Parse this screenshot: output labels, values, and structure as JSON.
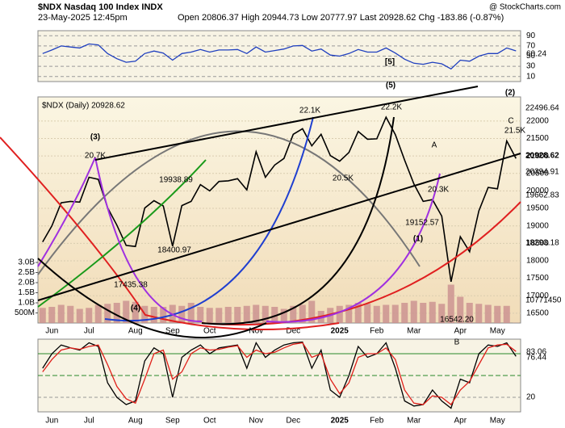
{
  "header": {
    "title": "$NDX Nasdaq 100 Index INDX",
    "date": "23-May-2025 12:45pm",
    "ohlc": "Open 20806.37 High 20944.73 Low 20777.97 Last 20928.62 Chg -183.86 (-0.87%)",
    "brand": "@ StockCharts.com"
  },
  "chart_data": [
    {
      "type": "line",
      "color": "#1f3fbf",
      "values": [
        55,
        62,
        70,
        68,
        66,
        74,
        72,
        55,
        45,
        38,
        40,
        55,
        60,
        56,
        42,
        55,
        58,
        63,
        58,
        62,
        62,
        63,
        55,
        68,
        58,
        61,
        64,
        70,
        71,
        60,
        64,
        52,
        50,
        55,
        63,
        58,
        58,
        66,
        56,
        44,
        36,
        34,
        38,
        35,
        25,
        42,
        40,
        50,
        55,
        55,
        66,
        60.24
      ],
      "ylim": [
        0,
        100
      ],
      "yticks": [
        10,
        30,
        50,
        70,
        90
      ],
      "grid": true,
      "annotations": [
        "[5]",
        "60.24"
      ]
    },
    {
      "type": "line",
      "legend": "$NDX (Daily) 20928.62",
      "categories": [
        null,
        "Jun",
        null,
        null,
        null,
        "Jul",
        null,
        null,
        null,
        null,
        "Aug",
        null,
        null,
        null,
        "Sep",
        null,
        null,
        null,
        "Oct",
        null,
        null,
        null,
        null,
        "Nov",
        null,
        null,
        null,
        "Dec",
        null,
        null,
        null,
        null,
        "2025",
        null,
        null,
        null,
        "Feb",
        null,
        null,
        null,
        "Mar",
        null,
        null,
        null,
        null,
        "Apr",
        null,
        null,
        null,
        "May",
        null,
        null
      ],
      "series": [
        {
          "color": "#000000",
          "values": [
            18540,
            19000,
            19660,
            19700,
            19680,
            20390,
            20330,
            19520,
            19020,
            18440,
            18410,
            19510,
            19720,
            19570,
            18420,
            19580,
            19700,
            20180,
            20000,
            20270,
            20290,
            20350,
            20030,
            21120,
            20390,
            20740,
            20930,
            21620,
            21780,
            21290,
            21620,
            21010,
            20850,
            21100,
            21700,
            21480,
            21490,
            22110,
            21610,
            20880,
            20200,
            19700,
            19750,
            19280,
            17400,
            18690,
            18260,
            19430,
            20100,
            20060,
            21430,
            20928.62
          ]
        },
        {
          "type": "bar",
          "axis": "y2",
          "color": "#c98f8f",
          "values": [
            750000000,
            800000000,
            900000000,
            850000000,
            700000000,
            750000000,
            900000000,
            950000000,
            1000000000,
            1100000000,
            1050000000,
            850000000,
            800000000,
            800000000,
            900000000,
            850000000,
            1000000000,
            800000000,
            750000000,
            750000000,
            800000000,
            800000000,
            850000000,
            900000000,
            850000000,
            800000000,
            700000000,
            850000000,
            900000000,
            1100000000,
            600000000,
            750000000,
            850000000,
            900000000,
            1000000000,
            950000000,
            850000000,
            900000000,
            900000000,
            1000000000,
            1100000000,
            1000000000,
            1050000000,
            950000000,
            1900000000,
            1300000000,
            1000000000,
            950000000,
            900000000,
            850000000,
            850000000,
            10771450
          ]
        }
      ],
      "ylim": [
        16220,
        22690
      ],
      "yticks": [
        16500,
        17000,
        17500,
        18000,
        18500,
        19000,
        19500,
        20000,
        20500,
        21000,
        21500,
        22000
      ],
      "y2lim": [
        0,
        11200000000
      ],
      "y2ticks": [
        {
          "value": 500000000,
          "label": "500M"
        },
        {
          "value": 1000000000,
          "label": "1.0B"
        },
        {
          "value": 1500000000,
          "label": "1.5B"
        },
        {
          "value": 2000000000,
          "label": "2.0B"
        },
        {
          "value": 2500000000,
          "label": "2.5B"
        },
        {
          "value": 3000000000,
          "label": "3.0B"
        }
      ],
      "grid": true,
      "annotations": [
        "(3)",
        "20.7K",
        "19938.89",
        "18400.97",
        "17435.38",
        "(4)",
        "22.1K",
        "20.5K",
        "(5)",
        "22.2K",
        "A",
        "20.3K",
        "19152.57",
        "(1)",
        "16542.20",
        "(2)",
        "C",
        "21.5K",
        "22496.64",
        "20928.62",
        "20394.91",
        "19662.83",
        "18293.18",
        "10771450"
      ]
    },
    {
      "type": "line",
      "series": [
        {
          "color": "#000000",
          "values": [
            60,
            80,
            92,
            88,
            85,
            95,
            90,
            40,
            20,
            10,
            15,
            70,
            88,
            80,
            20,
            75,
            85,
            92,
            80,
            88,
            90,
            92,
            60,
            95,
            75,
            85,
            92,
            95,
            96,
            60,
            85,
            30,
            20,
            50,
            90,
            75,
            80,
            95,
            60,
            15,
            8,
            10,
            30,
            15,
            5,
            45,
            40,
            80,
            92,
            90,
            95,
            76.44
          ]
        },
        {
          "color": "#e0201a",
          "values": [
            55,
            72,
            85,
            88,
            86,
            90,
            92,
            65,
            35,
            18,
            12,
            45,
            80,
            85,
            45,
            55,
            80,
            88,
            85,
            86,
            89,
            91,
            75,
            85,
            80,
            82,
            88,
            93,
            95,
            75,
            80,
            45,
            25,
            40,
            75,
            80,
            80,
            88,
            72,
            30,
            12,
            10,
            22,
            20,
            10,
            30,
            42,
            65,
            88,
            92,
            93,
            83.06
          ]
        }
      ],
      "ylim": [
        0,
        100
      ],
      "yticks": [
        20
      ],
      "grid": true,
      "annotations": [
        "B",
        "83.06",
        "76.44"
      ]
    }
  ]
}
